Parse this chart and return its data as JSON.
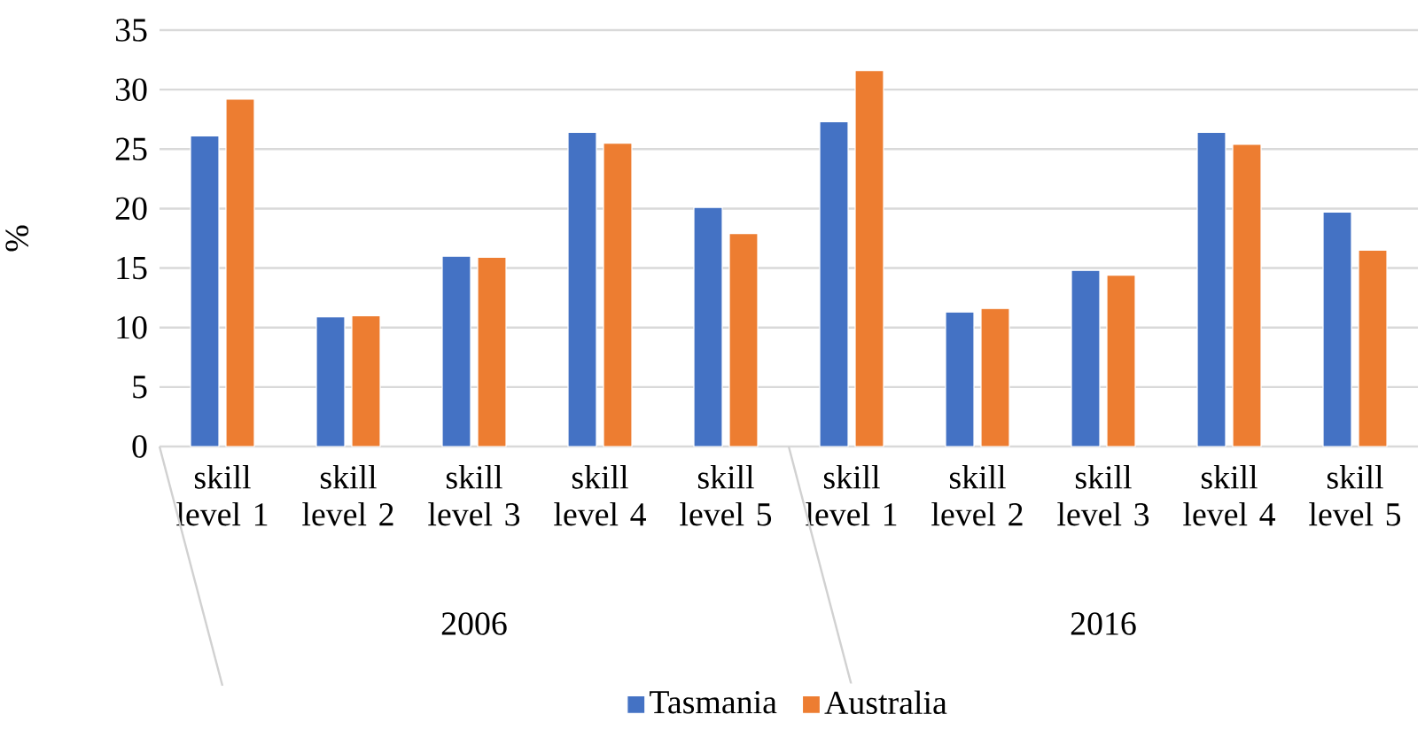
{
  "chart_data": {
    "type": "bar",
    "ylabel": "%",
    "categories": [
      "skill level 1",
      "skill level 2",
      "skill level 3",
      "skill level 4",
      "skill level 5",
      "skill level 1",
      "skill level 2",
      "skill level 3",
      "skill level 4",
      "skill level 5"
    ],
    "annotations": [
      "2006",
      "2016"
    ],
    "series": [
      {
        "name": "Tasmania",
        "color": "#4472c4",
        "values": [
          26.1,
          10.9,
          16.0,
          26.4,
          20.1,
          27.3,
          11.3,
          14.8,
          26.4,
          19.7
        ]
      },
      {
        "name": "Australia",
        "color": "#ed7d31",
        "values": [
          29.2,
          11.0,
          15.9,
          25.5,
          17.9,
          31.6,
          11.6,
          14.4,
          25.4,
          16.5
        ]
      }
    ],
    "ylim": [
      0,
      35
    ],
    "yticks": [
      0,
      5,
      10,
      15,
      20,
      25,
      30,
      35
    ],
    "grid": "y",
    "legend": "bottom"
  }
}
